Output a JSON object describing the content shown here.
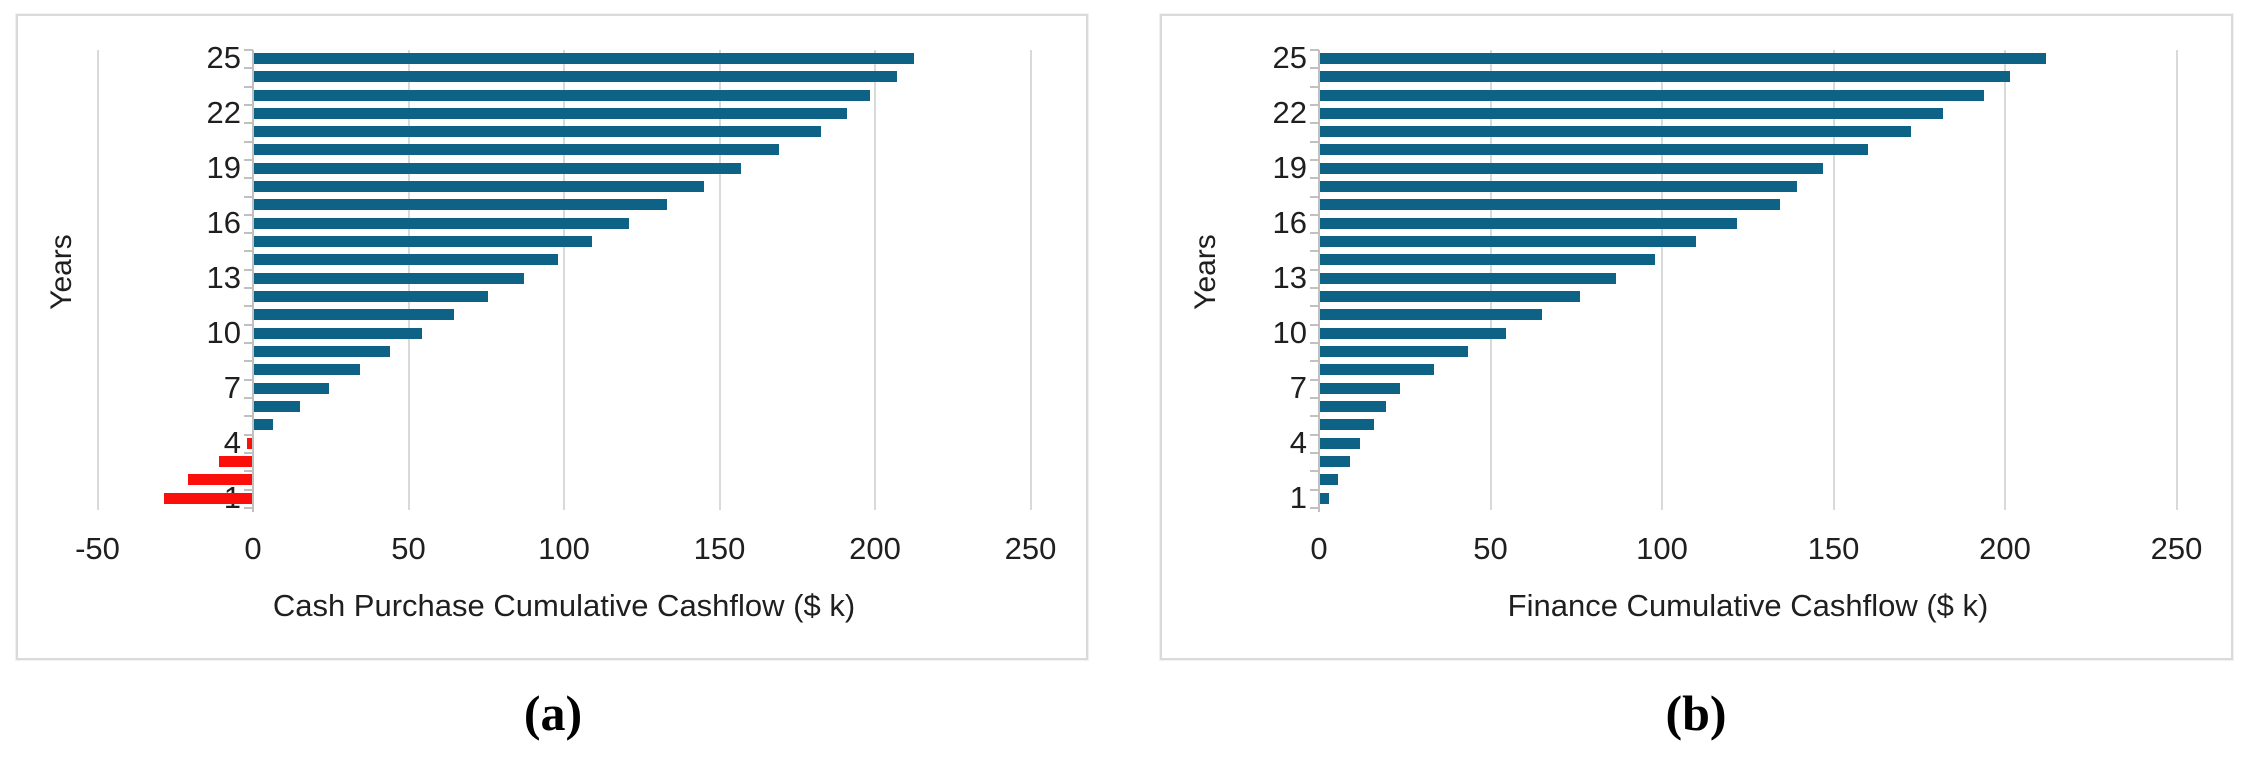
{
  "figure": {
    "captions": [
      "(a)",
      "(b)"
    ],
    "background_color": "#ffffff"
  },
  "chart_data": [
    {
      "id": "cash-purchase",
      "type": "bar",
      "orientation": "horizontal",
      "xlabel": "Cash Purchase Cumulative Cashflow ($ k)",
      "ylabel": "Years",
      "xlim": [
        -50,
        250
      ],
      "grid": true,
      "x_ticks": [
        -50,
        0,
        50,
        100,
        150,
        200,
        250
      ],
      "x_tick_labels": [
        "-50",
        "0",
        "50",
        "100",
        "150",
        "200",
        "250"
      ],
      "y_tick_years": [
        1,
        4,
        7,
        10,
        13,
        16,
        19,
        22,
        25
      ],
      "y_tick_labels": [
        "1",
        "4",
        "7",
        "10",
        "13",
        "16",
        "19",
        "22",
        "25"
      ],
      "categories": [
        1,
        2,
        3,
        4,
        5,
        6,
        7,
        8,
        9,
        10,
        11,
        12,
        13,
        14,
        15,
        16,
        17,
        18,
        19,
        20,
        21,
        22,
        23,
        24,
        25
      ],
      "values": [
        -28.5,
        -21,
        -11,
        -2,
        6.5,
        15,
        24.5,
        34.5,
        44,
        54.5,
        64.5,
        75.5,
        87,
        98,
        109,
        121,
        133,
        145,
        157,
        169,
        182.5,
        191,
        198.5,
        207,
        212.5
      ],
      "positive_color": "#0d6286",
      "negative_color": "#fb0f0b",
      "gridline_color": "#d9d9d9",
      "axis_color": "#c0c0c0"
    },
    {
      "id": "finance",
      "type": "bar",
      "orientation": "horizontal",
      "xlabel": "Finance Cumulative Cashflow ($ k)",
      "ylabel": "Years",
      "xlim": [
        0,
        250
      ],
      "grid": true,
      "x_ticks": [
        0,
        50,
        100,
        150,
        200,
        250
      ],
      "x_tick_labels": [
        "0",
        "50",
        "100",
        "150",
        "200",
        "250"
      ],
      "y_tick_years": [
        1,
        4,
        7,
        10,
        13,
        16,
        19,
        22,
        25
      ],
      "y_tick_labels": [
        "1",
        "4",
        "7",
        "10",
        "13",
        "16",
        "19",
        "22",
        "25"
      ],
      "categories": [
        1,
        2,
        3,
        4,
        5,
        6,
        7,
        8,
        9,
        10,
        11,
        12,
        13,
        14,
        15,
        16,
        17,
        18,
        19,
        20,
        21,
        22,
        23,
        24,
        25
      ],
      "values": [
        3,
        5.5,
        9,
        12,
        16,
        19.5,
        23.5,
        33.5,
        43.5,
        54.5,
        65,
        76,
        86.5,
        98,
        110,
        122,
        134.5,
        139.5,
        147,
        160,
        172.5,
        182,
        194,
        201.5,
        212
      ],
      "positive_color": "#0d6286",
      "negative_color": "#fb0f0b",
      "gridline_color": "#d9d9d9",
      "axis_color": "#c0c0c0"
    }
  ]
}
